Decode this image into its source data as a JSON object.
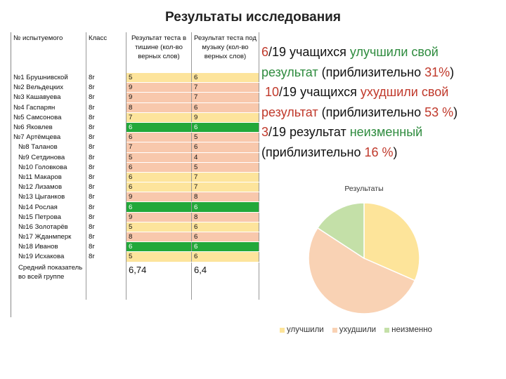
{
  "title": "Результаты исследования",
  "table": {
    "headers": [
      "№ испытуемого",
      "Класс",
      "Результат теста в тишине (кол-во верных слов)",
      "Результат теста под музыку (кол-во верных слов)"
    ],
    "rows": [
      {
        "name": "№1 Брушнивской",
        "cls": "8г",
        "t1": "5",
        "t2": "6",
        "status": "improved"
      },
      {
        "name": "№2 Вельдецких",
        "cls": "8г",
        "t1": "9",
        "t2": "7",
        "status": "worse"
      },
      {
        "name": "№3 Кашавуева",
        "cls": "8г",
        "t1": "9",
        "t2": "7",
        "status": "worse"
      },
      {
        "name": "№4 Гаспарян",
        "cls": "8г",
        "t1": "8",
        "t2": "6",
        "status": "worse"
      },
      {
        "name": "№5 Самсонова",
        "cls": "8г",
        "t1": "7",
        "t2": "9",
        "status": "improved"
      },
      {
        "name": "№6 Яковлев",
        "cls": "8г",
        "t1": "6",
        "t2": "6",
        "status": "same"
      },
      {
        "name": "№7 Артёмцева",
        "cls": "8г",
        "t1": "6",
        "t2": "5",
        "status": "worse"
      },
      {
        "name": "№8 Таланов",
        "cls": "8г",
        "t1": "7",
        "t2": "6",
        "status": "worse"
      },
      {
        "name": "№9 Сетдинова",
        "cls": "8г",
        "t1": "5",
        "t2": "4",
        "status": "worse"
      },
      {
        "name": "№10 Головкова",
        "cls": "8г",
        "t1": "6",
        "t2": "5",
        "status": "worse"
      },
      {
        "name": "№11 Макаров",
        "cls": "8г",
        "t1": "6",
        "t2": "7",
        "status": "improved"
      },
      {
        "name": "№12 Лизамов",
        "cls": "8г",
        "t1": "6",
        "t2": "7",
        "status": "improved"
      },
      {
        "name": "№13 Цыганков",
        "cls": "8г",
        "t1": "9",
        "t2": "8",
        "status": "worse"
      },
      {
        "name": "№14 Рослая",
        "cls": "8г",
        "t1": "6",
        "t2": "6",
        "status": "same"
      },
      {
        "name": "№15 Петрова",
        "cls": "8г",
        "t1": "9",
        "t2": "8",
        "status": "worse"
      },
      {
        "name": "№16 Золотарёв",
        "cls": "8г",
        "t1": "5",
        "t2": "6",
        "status": "improved"
      },
      {
        "name": "№17 Жданмперк",
        "cls": "8г",
        "t1": "8",
        "t2": "6",
        "status": "worse"
      },
      {
        "name": "№18 Иванов",
        "cls": "8г",
        "t1": "6",
        "t2": "6",
        "status": "same"
      },
      {
        "name": "№19 Исхакова",
        "cls": "8г",
        "t1": "5",
        "t2": "6",
        "status": "improved"
      }
    ],
    "avg_label": "Средний показатель во всей группе",
    "avg_t1": "6,74",
    "avg_t2": "6,4"
  },
  "summary": {
    "l1": {
      "num": "6",
      "rest": "/19 учащихся ",
      "hl": "улучшили свой"
    },
    "l2": {
      "hl": "результат",
      "rest": " (приблизительно ",
      "pct": "31%",
      "end": ")"
    },
    "l3": {
      "num": "10",
      "rest": "/19 учащихся ",
      "hl": "ухудшили свой"
    },
    "l4": {
      "hl": "результат",
      "rest": " (приблизительно ",
      "pct": "53 %",
      "end": ")"
    },
    "l5": {
      "num": "3",
      "rest": "/19 результат ",
      "hl": "неизменный"
    },
    "l6": {
      "start": "(приблизительно ",
      "pct": "16 %",
      "end": ")"
    }
  },
  "colors": {
    "improved": "#fde49c",
    "worse": "#f8c8ac",
    "same": "#22a83a",
    "pie_improved": "#fde49a",
    "pie_worse": "#f9d2b4",
    "pie_same": "#c4e0a8"
  },
  "chart_data": {
    "type": "pie",
    "title": "Результаты",
    "categories": [
      "улучшили",
      "ухудшили",
      "неизменно"
    ],
    "values": [
      6,
      10,
      3
    ],
    "legend": "bottom"
  }
}
